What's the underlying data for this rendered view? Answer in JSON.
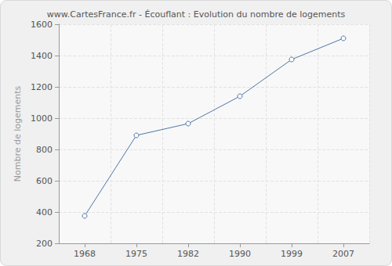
{
  "chart_data": {
    "type": "line",
    "title": "www.CartesFrance.fr - Écouflant : Evolution du nombre de logements",
    "y_label": "Nombre de logements",
    "categories": [
      "1968",
      "1975",
      "1982",
      "1990",
      "1999",
      "2007"
    ],
    "values": [
      375,
      890,
      965,
      1140,
      1375,
      1510
    ],
    "color": "#4f76a6",
    "marker": "circle",
    "ylim": [
      200,
      1600
    ],
    "yticks": [
      200,
      400,
      600,
      800,
      1000,
      1200,
      1400,
      1600
    ],
    "grid": true
  }
}
